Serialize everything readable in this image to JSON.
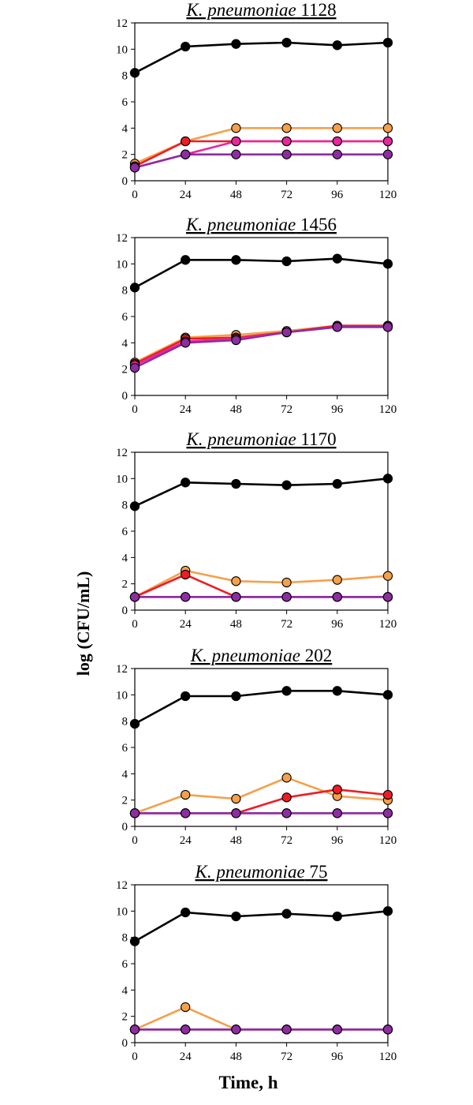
{
  "figure": {
    "ylabel": "log (CFU/mL)",
    "xlabel": "Time, h"
  },
  "colors": {
    "black": "#000000",
    "orange": "#f5a04a",
    "red": "#ee1c25",
    "magenta": "#e8279b",
    "purple": "#8e2da1"
  },
  "chart_data": [
    {
      "type": "line",
      "title_italic": "K. pneumoniae",
      "title_num": "1128",
      "x": [
        0,
        24,
        48,
        72,
        96,
        120
      ],
      "xticks": [
        "0",
        "24",
        "48",
        "72",
        "96",
        "120"
      ],
      "yticks": [
        "0",
        "2",
        "4",
        "6",
        "8",
        "10",
        "12"
      ],
      "ylim": [
        0,
        12
      ],
      "xlim": [
        0,
        120
      ],
      "series": [
        {
          "name": "black",
          "color": "#000000",
          "values": [
            8.2,
            10.2,
            10.4,
            10.5,
            10.3,
            10.5
          ]
        },
        {
          "name": "orange",
          "color": "#f5a04a",
          "values": [
            1.3,
            3.0,
            4.0,
            4.0,
            4.0,
            4.0
          ]
        },
        {
          "name": "red",
          "color": "#ee1c25",
          "values": [
            1.1,
            3.0,
            3.0,
            3.0,
            3.0,
            3.0
          ]
        },
        {
          "name": "magenta",
          "color": "#e8279b",
          "values": [
            1.0,
            2.0,
            3.0,
            3.0,
            3.0,
            3.0
          ]
        },
        {
          "name": "purple",
          "color": "#8e2da1",
          "values": [
            1.0,
            2.0,
            2.0,
            2.0,
            2.0,
            2.0
          ]
        }
      ]
    },
    {
      "type": "line",
      "title_italic": "K. pneumoniae",
      "title_num": "1456",
      "x": [
        0,
        24,
        48,
        72,
        96,
        120
      ],
      "xticks": [
        "0",
        "24",
        "48",
        "72",
        "96",
        "120"
      ],
      "yticks": [
        "0",
        "2",
        "4",
        "6",
        "8",
        "10",
        "12"
      ],
      "ylim": [
        0,
        12
      ],
      "xlim": [
        0,
        120
      ],
      "series": [
        {
          "name": "black",
          "color": "#000000",
          "values": [
            8.2,
            10.3,
            10.3,
            10.2,
            10.4,
            10.0
          ]
        },
        {
          "name": "orange",
          "color": "#f5a04a",
          "values": [
            2.5,
            4.4,
            4.6,
            4.9,
            5.3,
            5.3
          ]
        },
        {
          "name": "red",
          "color": "#ee1c25",
          "values": [
            2.4,
            4.3,
            4.4,
            4.8,
            5.3,
            5.3
          ]
        },
        {
          "name": "magenta",
          "color": "#e8279b",
          "values": [
            2.3,
            4.1,
            4.3,
            4.8,
            5.2,
            5.2
          ]
        },
        {
          "name": "purple",
          "color": "#8e2da1",
          "values": [
            2.1,
            4.0,
            4.2,
            4.8,
            5.2,
            5.2
          ]
        }
      ]
    },
    {
      "type": "line",
      "title_italic": "K. pneumoniae",
      "title_num": "1170",
      "x": [
        0,
        24,
        48,
        72,
        96,
        120
      ],
      "xticks": [
        "0",
        "24",
        "48",
        "72",
        "96",
        "120"
      ],
      "yticks": [
        "0",
        "2",
        "4",
        "6",
        "8",
        "10",
        "12"
      ],
      "ylim": [
        0,
        12
      ],
      "xlim": [
        0,
        120
      ],
      "series": [
        {
          "name": "black",
          "color": "#000000",
          "values": [
            7.9,
            9.7,
            9.6,
            9.5,
            9.6,
            10.0
          ]
        },
        {
          "name": "orange",
          "color": "#f5a04a",
          "values": [
            1.0,
            3.0,
            2.2,
            2.1,
            2.3,
            2.6
          ]
        },
        {
          "name": "red",
          "color": "#ee1c25",
          "values": [
            1.0,
            2.7,
            1.0,
            1.0,
            1.0,
            1.0
          ]
        },
        {
          "name": "magenta",
          "color": "#e8279b",
          "values": [
            1.0,
            1.0,
            1.0,
            1.0,
            1.0,
            1.0
          ]
        },
        {
          "name": "purple",
          "color": "#8e2da1",
          "values": [
            1.0,
            1.0,
            1.0,
            1.0,
            1.0,
            1.0
          ]
        }
      ]
    },
    {
      "type": "line",
      "title_italic": "K. pneumoniae",
      "title_num": "202",
      "x": [
        0,
        24,
        48,
        72,
        96,
        120
      ],
      "xticks": [
        "0",
        "24",
        "48",
        "72",
        "96",
        "120"
      ],
      "yticks": [
        "0",
        "2",
        "4",
        "6",
        "8",
        "10",
        "12"
      ],
      "ylim": [
        0,
        12
      ],
      "xlim": [
        0,
        120
      ],
      "series": [
        {
          "name": "black",
          "color": "#000000",
          "values": [
            7.8,
            9.9,
            9.9,
            10.3,
            10.3,
            10.0
          ]
        },
        {
          "name": "orange",
          "color": "#f5a04a",
          "values": [
            1.0,
            2.4,
            2.1,
            3.7,
            2.3,
            2.0
          ]
        },
        {
          "name": "red",
          "color": "#ee1c25",
          "values": [
            1.0,
            1.0,
            1.0,
            2.2,
            2.8,
            2.4
          ]
        },
        {
          "name": "magenta",
          "color": "#e8279b",
          "values": [
            1.0,
            1.0,
            1.0,
            1.0,
            1.0,
            1.0
          ]
        },
        {
          "name": "purple",
          "color": "#8e2da1",
          "values": [
            1.0,
            1.0,
            1.0,
            1.0,
            1.0,
            1.0
          ]
        }
      ]
    },
    {
      "type": "line",
      "title_italic": "K. pneumoniae",
      "title_num": "75",
      "x": [
        0,
        24,
        48,
        72,
        96,
        120
      ],
      "xticks": [
        "0",
        "24",
        "48",
        "72",
        "96",
        "120"
      ],
      "yticks": [
        "0",
        "2",
        "4",
        "6",
        "8",
        "10",
        "12"
      ],
      "ylim": [
        0,
        12
      ],
      "xlim": [
        0,
        120
      ],
      "series": [
        {
          "name": "black",
          "color": "#000000",
          "values": [
            7.7,
            9.9,
            9.6,
            9.8,
            9.6,
            10.0
          ]
        },
        {
          "name": "orange",
          "color": "#f5a04a",
          "values": [
            1.0,
            2.7,
            1.0,
            1.0,
            1.0,
            1.0
          ]
        },
        {
          "name": "red",
          "color": "#ee1c25",
          "values": [
            1.0,
            1.0,
            1.0,
            1.0,
            1.0,
            1.0
          ]
        },
        {
          "name": "magenta",
          "color": "#e8279b",
          "values": [
            1.0,
            1.0,
            1.0,
            1.0,
            1.0,
            1.0
          ]
        },
        {
          "name": "purple",
          "color": "#8e2da1",
          "values": [
            1.0,
            1.0,
            1.0,
            1.0,
            1.0,
            1.0
          ]
        }
      ]
    }
  ]
}
